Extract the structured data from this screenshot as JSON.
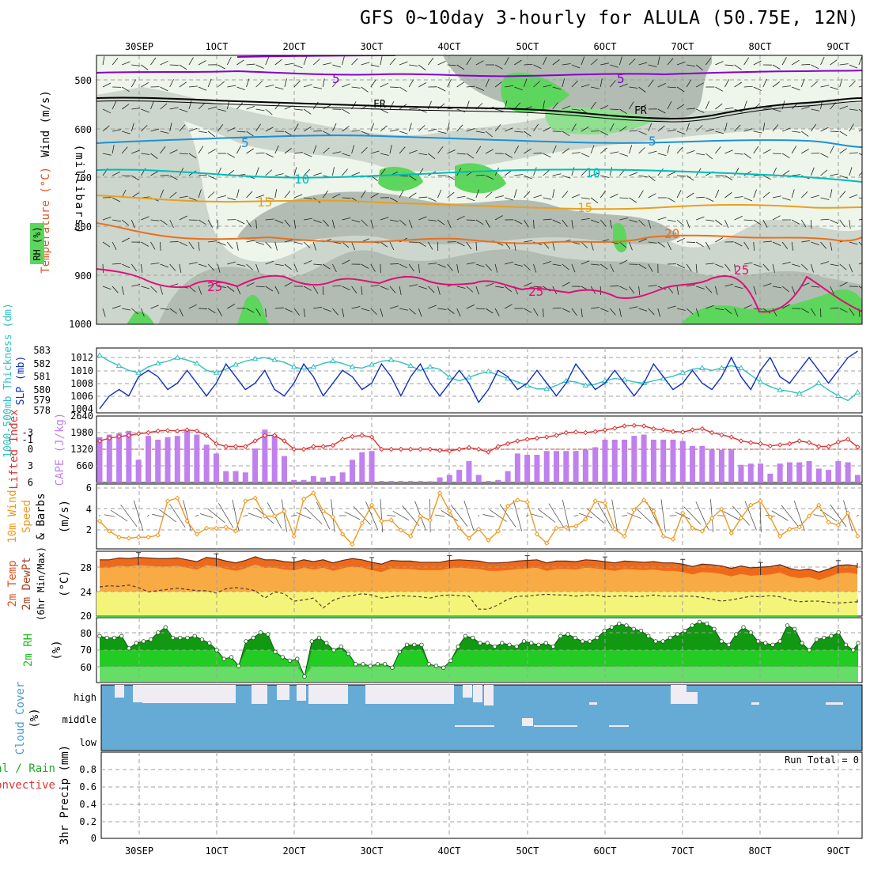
{
  "title": "GFS 0~10day 3-hourly for ALULA (50.75E, 12N)",
  "date_labels": [
    "30SEP",
    "1OCT",
    "2OCT",
    "3OCT",
    "4OCT",
    "5OCT",
    "6OCT",
    "7OCT",
    "8OCT",
    "9OCT"
  ],
  "colors": {
    "rh_light": "#eef5ea",
    "rh_mid": "#ccd6cc",
    "rh_dark": "#b2bcb2",
    "rh_green": "#5cd65c",
    "t5": "#8800cc",
    "tfr": "#000000",
    "t5b": "#1e90d6",
    "t10": "#00bbbb",
    "t15": "#e8a020",
    "t20": "#e87020",
    "t25": "#dd1177",
    "slp": "#1030c0",
    "thick": "#30c0c0",
    "cape": "#c080ee",
    "li": "#dd3333",
    "wind": "#ee9922",
    "temp": "#ee6a1a",
    "temp_fill": "#f8aa44",
    "dew_fill": "#f4f47a",
    "rh2m_dark": "#119911",
    "rh2m": "#22cc22",
    "rh2m_light": "#66dd66",
    "cloud": "#66aad6"
  },
  "panels": {
    "upper": {
      "ylabel_wind": "Wind (m/s)",
      "ylabel_temp": "Temperature (°C)",
      "ylabel_pressure": "(millibars)",
      "ylabel_rh": "RH (%)",
      "yticks": [
        "500",
        "600",
        "700",
        "800",
        "900",
        "1000"
      ],
      "contour_labels": [
        "5",
        "5",
        "FR",
        "FR",
        "5",
        "5",
        "10",
        "10",
        "15",
        "15",
        "20",
        "25",
        "25",
        "25"
      ]
    },
    "slp": {
      "ylabel_thick": "1000-500mb Thickness (dm)",
      "ylabel_slp": "SLP (mb)",
      "yticks_left": [
        "583",
        "582",
        "581",
        "580",
        "579",
        "578"
      ],
      "yticks_right": [
        "1012",
        "1010",
        "1008",
        "1006",
        "1004"
      ]
    },
    "cape": {
      "ylabel_li": "Lifted Index",
      "ylabel_cape": "CAPE (J/kg)",
      "yticks_left": [
        "-3",
        "-1",
        "0",
        "3",
        "6"
      ],
      "yticks_right": [
        "2640",
        "1980",
        "1320",
        "660"
      ]
    },
    "wind10": {
      "ylabel_a": "10m Wind",
      "ylabel_b": "Speed",
      "ylabel_c": "& Barbs",
      "ylabel_unit": "(m/s)",
      "yticks": [
        "6",
        "4",
        "2"
      ]
    },
    "temp2m": {
      "ylabel_a": "2m Temp",
      "ylabel_b": "2m DewPt",
      "ylabel_c": "(6hr Min/Max)",
      "ylabel_unit": "(°C)",
      "yticks": [
        "28",
        "24",
        "20"
      ]
    },
    "rh2m": {
      "ylabel": "2m RH",
      "ylabel_unit": "(%)",
      "yticks": [
        "80",
        "70",
        "60"
      ]
    },
    "cloud": {
      "ylabel": "Cloud Cover",
      "ylabel_unit": "(%)",
      "levels": [
        "high",
        "middle",
        "low"
      ]
    },
    "precip": {
      "ylabel_a": "Total / Rain",
      "ylabel_b": "Convective",
      "ylabel_c": "3hr Precip (mm)",
      "yticks": [
        "0.8",
        "0.6",
        "0.4",
        "0.2",
        "0"
      ],
      "run_total": "Run Total = 0"
    }
  },
  "chart_data": [
    {
      "type": "line",
      "x_start": "2023-09-29 03Z",
      "x_step_hours": 3,
      "ylabel": "SLP (mb)",
      "ylim": [
        1004,
        1013
      ],
      "series": [
        {
          "name": "SLP",
          "values": [
            1004,
            1006,
            1007,
            1006,
            1009,
            1010,
            1009,
            1007,
            1008,
            1010,
            1008,
            1006,
            1008,
            1011,
            1009,
            1007,
            1008,
            1010,
            1007,
            1006,
            1008,
            1011,
            1009,
            1006,
            1008,
            1010,
            1009,
            1007,
            1008,
            1011,
            1009,
            1006,
            1009,
            1011,
            1008,
            1006,
            1008,
            1010,
            1008,
            1005,
            1007,
            1010,
            1009,
            1007,
            1008,
            1010,
            1008,
            1006,
            1008,
            1011,
            1009,
            1007,
            1008,
            1010,
            1008,
            1006,
            1008,
            1011,
            1009,
            1007,
            1008,
            1010,
            1008,
            1007,
            1009,
            1012,
            1009,
            1007,
            1010,
            1012,
            1009,
            1008,
            1010,
            1012,
            1010,
            1008,
            1010,
            1012,
            1013
          ]
        }
      ]
    },
    {
      "type": "line",
      "ylabel": "1000-500mb Thickness (dm)",
      "ylim": [
        578,
        583
      ],
      "series": [
        {
          "name": "Thickness",
          "values": [
            582.5,
            582,
            581.6,
            581.2,
            581,
            581.5,
            581.8,
            582,
            582.3,
            582.1,
            581.8,
            581.2,
            581,
            581.3,
            581.7,
            582,
            582.2,
            582.3,
            582.1,
            581.9,
            581.5,
            581.3,
            581.5,
            581.8,
            582,
            581.8,
            581.5,
            581.4,
            581.7,
            582,
            582.1,
            581.9,
            581.6,
            581.2,
            581.5,
            581.3,
            580.6,
            580.3,
            580.6,
            580.9,
            581.1,
            580.8,
            580.5,
            580.2,
            579.9,
            579.6,
            579.6,
            579.9,
            580.3,
            580.2,
            579.9,
            580,
            580.3,
            580.5,
            580.4,
            580.2,
            580.1,
            580.3,
            580.5,
            580.7,
            581,
            581.3,
            581.4,
            581.2,
            581.4,
            581.6,
            581.4,
            580.8,
            580.2,
            579.8,
            579.5,
            579.4,
            579.2,
            579.6,
            580.1,
            579.5,
            579.0,
            578.6,
            579.3
          ]
        }
      ]
    },
    {
      "type": "bar",
      "ylabel": "CAPE (J/kg)",
      "ylim": [
        0,
        2640
      ],
      "values": [
        1800,
        1900,
        1950,
        2050,
        900,
        1850,
        1700,
        1800,
        1850,
        2100,
        1900,
        1500,
        1150,
        450,
        450,
        400,
        1350,
        2100,
        1900,
        1050,
        100,
        100,
        250,
        200,
        250,
        400,
        900,
        1200,
        1250,
        0,
        0,
        0,
        0,
        0,
        50,
        200,
        300,
        500,
        850,
        300,
        0,
        100,
        450,
        1150,
        1100,
        1100,
        1250,
        1250,
        1250,
        1250,
        1300,
        1400,
        1700,
        1700,
        1700,
        1850,
        1900,
        1700,
        1700,
        1700,
        1650,
        1450,
        1450,
        1300,
        1300,
        1300,
        700,
        750,
        750,
        350,
        750,
        800,
        800,
        850,
        550,
        500,
        850,
        800,
        300,
        750,
        850,
        950
      ]
    },
    {
      "type": "line",
      "ylabel": "Lifted Index",
      "ylim": [
        6,
        -4
      ],
      "series": [
        {
          "name": "Lifted Index",
          "values": [
            -1.5,
            -2,
            -2.3,
            -2.5,
            -2.8,
            -3,
            -3.3,
            -3.4,
            -3.3,
            -3.5,
            -3.3,
            -2.5,
            -1,
            -0.5,
            -0.5,
            -0.5,
            -1.5,
            -2.5,
            -2.5,
            -1.5,
            0,
            0,
            -0.5,
            -0.5,
            -0.7,
            -1.8,
            -2.3,
            -2.5,
            -2.2,
            0,
            0,
            0,
            0,
            0,
            0,
            0.2,
            0.3,
            0,
            -0.3,
            0,
            0.5,
            -0.5,
            -1,
            -1.5,
            -1.8,
            -2,
            -2.2,
            -2.5,
            -3,
            -3.1,
            -3,
            -3.2,
            -3.5,
            -3.8,
            -4.2,
            -4.3,
            -4.2,
            -3.7,
            -3.5,
            -3.2,
            -3.1,
            -3.5,
            -3.7,
            -3,
            -2.6,
            -2.2,
            -1.5,
            -1.2,
            -1,
            -0.6,
            -0.8,
            -1,
            -1.5,
            -1.2,
            -0.5,
            -0.5,
            -1.3,
            -1.8,
            -0.4,
            -0.2,
            -1.0,
            -0.8
          ]
        }
      ]
    },
    {
      "type": "line",
      "ylabel": "10m Wind Speed (m/s)",
      "ylim": [
        0,
        6
      ],
      "series": [
        {
          "name": "10m Wind",
          "values": [
            3,
            2,
            1.4,
            1.3,
            1.4,
            1.4,
            1.6,
            5,
            5.3,
            3,
            1.7,
            2.3,
            2.3,
            2.4,
            2,
            5,
            5.3,
            3.5,
            3.5,
            4,
            1.5,
            5.2,
            5.8,
            4,
            3.4,
            1.7,
            0.7,
            2.8,
            4.6,
            3,
            3.1,
            2.1,
            1.5,
            3.5,
            3.1,
            5.8,
            4,
            2.3,
            1.3,
            2.2,
            1.1,
            2,
            4.5,
            5.1,
            4.9,
            1.7,
            0.8,
            2.3,
            2.4,
            2.5,
            3.2,
            5,
            4.8,
            2.2,
            1.5,
            4.1,
            5.1,
            4,
            1.5,
            1.2,
            3.8,
            2.3,
            2,
            3.3,
            4.2,
            1.8,
            3.3,
            4.6,
            5,
            3.4,
            1.5,
            2.2,
            2.4,
            3.5,
            4.6,
            2.9,
            2.6,
            3.8,
            1.5,
            3.1,
            2.3,
            3.3,
            4.8,
            2.0,
            1.0
          ]
        }
      ]
    },
    {
      "type": "area",
      "ylabel": "2m Temp (°C)",
      "ylim": [
        20,
        30
      ],
      "series": [
        {
          "name": "2m Temp",
          "values": [
            29,
            29,
            29.3,
            29.2,
            29.4,
            29.3,
            29.2,
            29.2,
            29.3,
            29,
            28.7,
            29.4,
            29.2,
            28.8,
            28.5,
            28.9,
            29.5,
            29,
            29,
            28.7,
            28.6,
            29,
            28.7,
            29,
            28.5,
            28.9,
            29.2,
            29,
            28.6,
            28.3,
            28.9,
            28.8,
            28.8,
            28.6,
            28.6,
            28.6,
            28.9,
            29,
            28.9,
            28.8,
            28.5,
            28.5,
            28.6,
            28.8,
            28.9,
            29,
            28.5,
            28.8,
            28.8,
            28.7,
            29,
            28.9,
            28.7,
            28.5,
            28.8,
            28.7,
            28.6,
            28.7,
            28.5,
            28.5,
            28.3,
            27.9,
            28.3,
            28.2,
            28,
            27.6,
            28,
            27.7,
            27.8,
            27.9,
            28.2,
            27.6,
            27.3,
            27.5,
            27,
            27.5,
            28.1,
            28.2,
            28,
            27.7,
            28.2,
            28.5
          ]
        },
        {
          "name": "2m DewPt",
          "values": [
            24.6,
            24.8,
            24.7,
            24.9,
            24.5,
            23.8,
            24,
            24.2,
            24.4,
            24.2,
            24,
            24,
            23.6,
            24.3,
            24.5,
            24.3,
            24,
            22.8,
            23.8,
            23.5,
            22.3,
            22.5,
            22.8,
            21.2,
            22.4,
            23,
            23.2,
            23.5,
            23.3,
            22.8,
            23,
            23.2,
            23.1,
            23,
            22.8,
            23.2,
            23.3,
            23.2,
            23.1,
            21,
            21,
            21.7,
            22.6,
            23.1,
            23.1,
            23.3,
            23.4,
            23.3,
            23.3,
            23.1,
            23.3,
            23.3,
            23,
            23.1,
            23.2,
            23,
            23.1,
            23.3,
            23.1,
            23.1,
            23.1,
            23.1,
            22.9,
            22.6,
            22.3,
            22.5,
            22.8,
            23.1,
            23,
            23.2,
            23,
            22.5,
            22.2,
            22.3,
            22.3,
            22.1,
            22,
            22.1,
            22.2,
            21.9,
            22.2,
            22.7,
            22.8,
            22.2
          ]
        }
      ]
    },
    {
      "type": "area",
      "ylabel": "2m RH (%)",
      "ylim": [
        52,
        88
      ],
      "series": [
        {
          "name": "2m RH",
          "values": [
            78,
            77,
            77,
            78,
            71,
            74,
            75,
            76,
            80,
            83,
            77,
            77,
            77,
            78,
            76,
            74,
            70,
            65,
            66,
            61,
            75,
            77,
            80,
            79,
            69,
            66,
            64,
            65,
            55,
            75,
            77,
            74,
            70,
            72,
            68,
            62,
            62,
            61,
            62,
            62,
            60,
            69,
            73,
            73,
            73,
            62,
            61,
            60,
            64,
            72,
            78,
            77,
            74,
            74,
            72,
            74,
            73,
            72,
            75,
            74,
            73,
            74,
            72,
            78,
            79,
            77,
            75,
            75,
            77,
            81,
            83,
            85,
            84,
            82,
            81,
            78,
            75,
            75,
            77,
            79,
            81,
            84,
            86,
            85,
            82,
            75,
            73,
            79,
            83,
            80,
            75,
            74,
            73,
            75,
            84,
            82,
            74,
            70,
            76,
            77,
            78,
            80,
            73,
            70,
            74
          ]
        }
      ]
    },
    {
      "type": "area",
      "ylabel": "Cloud Cover (%)",
      "series": [
        {
          "name": "high",
          "values": []
        },
        {
          "name": "middle",
          "values": []
        },
        {
          "name": "low",
          "values": []
        }
      ]
    },
    {
      "type": "bar",
      "ylabel": "3hr Precip (mm)",
      "ylim": [
        0,
        1
      ],
      "values": []
    }
  ]
}
